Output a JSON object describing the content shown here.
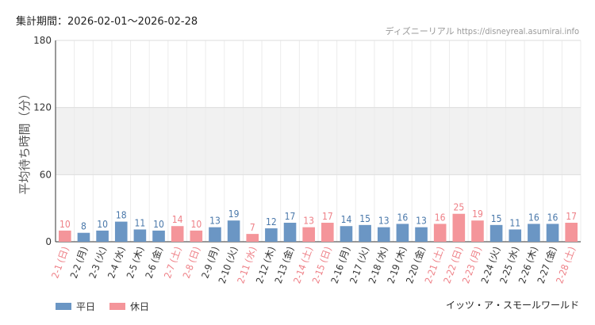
{
  "header": {
    "period_label": "集計期間：",
    "period_start": "2026-02-01",
    "period_sep": "〜",
    "period_end": "2026-02-28",
    "credit": "ディズニーリアル https://disneyreal.asumirai.info"
  },
  "legend": {
    "weekday_label": "平日",
    "holiday_label": "休日"
  },
  "footer": {
    "park_name": "イッツ・ア・スモールワールド"
  },
  "colors": {
    "weekday": "#6b96c4",
    "holiday": "#f4959a",
    "weekday_text": "#4a78aa",
    "holiday_text": "#ee7f86",
    "band": "#f1f1f1",
    "axis": "#333333"
  },
  "chart_data": {
    "type": "bar",
    "ylabel": "平均待ち時間（分）",
    "ylim": [
      0,
      180
    ],
    "yticks": [
      0,
      60,
      120,
      180
    ],
    "categories": [
      "2-1 (日)",
      "2-2 (月)",
      "2-3 (火)",
      "2-4 (水)",
      "2-5 (木)",
      "2-6 (金)",
      "2-7 (土)",
      "2-8 (日)",
      "2-9 (月)",
      "2-10 (火)",
      "2-11 (水)",
      "2-12 (木)",
      "2-13 (金)",
      "2-14 (土)",
      "2-15 (日)",
      "2-16 (月)",
      "2-17 (火)",
      "2-18 (水)",
      "2-19 (木)",
      "2-20 (金)",
      "2-21 (土)",
      "2-22 (日)",
      "2-23 (月)",
      "2-24 (火)",
      "2-25 (水)",
      "2-26 (木)",
      "2-27 (金)",
      "2-28 (土)"
    ],
    "values": [
      10,
      8,
      10,
      18,
      11,
      10,
      14,
      10,
      13,
      19,
      7,
      12,
      17,
      13,
      17,
      14,
      15,
      13,
      16,
      13,
      16,
      25,
      19,
      15,
      11,
      16,
      16,
      17
    ],
    "day_type": [
      "holiday",
      "weekday",
      "weekday",
      "weekday",
      "weekday",
      "weekday",
      "holiday",
      "holiday",
      "weekday",
      "weekday",
      "holiday",
      "weekday",
      "weekday",
      "holiday",
      "holiday",
      "weekday",
      "weekday",
      "weekday",
      "weekday",
      "weekday",
      "holiday",
      "holiday",
      "holiday",
      "weekday",
      "weekday",
      "weekday",
      "weekday",
      "holiday"
    ]
  }
}
